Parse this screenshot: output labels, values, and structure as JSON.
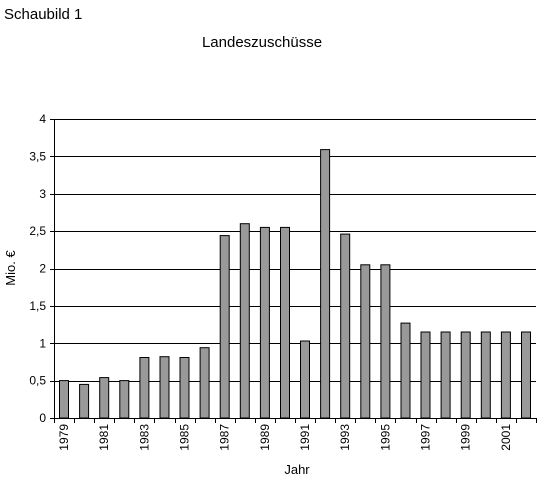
{
  "caption": "Schaubild 1",
  "colors": {
    "bar": "#999999",
    "bar_stroke": "#000000",
    "grid": "#000000",
    "background": "#ffffff"
  },
  "chart_data": {
    "type": "bar",
    "title": "Landeszuschüsse",
    "xlabel": "Jahr",
    "ylabel": "Mio. €",
    "ylim": [
      0,
      4
    ],
    "yticks": [
      0,
      0.5,
      1,
      1.5,
      2,
      2.5,
      3,
      3.5,
      4
    ],
    "ytick_labels": [
      "0",
      "0,5",
      "1",
      "1,5",
      "2",
      "2,5",
      "3",
      "3,5",
      "4"
    ],
    "grid": true,
    "categories": [
      "1979",
      "1980",
      "1981",
      "1982",
      "1983",
      "1984",
      "1985",
      "1986",
      "1987",
      "1988",
      "1989",
      "1990",
      "1991",
      "1992",
      "1993",
      "1994",
      "1995",
      "1996",
      "1997",
      "1998",
      "1999",
      "2000",
      "2001",
      "2002"
    ],
    "xtick_labels": [
      "1979",
      "1981",
      "1983",
      "1985",
      "1987",
      "1989",
      "1991",
      "1993",
      "1995",
      "1997",
      "1999",
      "2001"
    ],
    "values": [
      0.5,
      0.45,
      0.54,
      0.5,
      0.81,
      0.82,
      0.81,
      0.94,
      2.44,
      2.6,
      2.55,
      2.55,
      1.03,
      3.59,
      2.46,
      2.05,
      2.05,
      1.27,
      1.15,
      1.15,
      1.15,
      1.15,
      1.15,
      1.15
    ]
  }
}
